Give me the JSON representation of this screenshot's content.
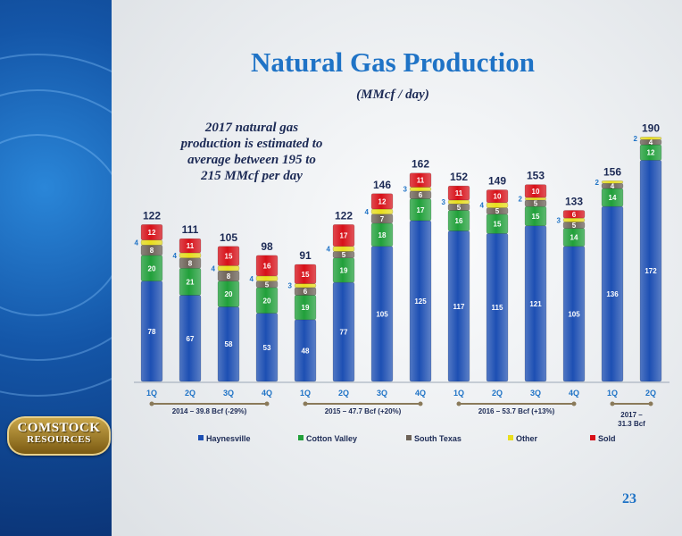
{
  "slide": {
    "title": "Natural Gas Production",
    "subtitle": "(MMcf / day)",
    "note": "2017 natural gas production is estimated to average between 195 to 215 MMcf  per day",
    "page_number": "23",
    "logo_line1": "COMSTOCK",
    "logo_line2": "RESOURCES"
  },
  "colors": {
    "Haynesville": "#1d4fb3",
    "Cotton Valley": "#21a03a",
    "South Texas": "#6d6257",
    "Other": "#e9de1d",
    "Sold": "#d81018"
  },
  "chart_data": {
    "type": "bar",
    "stacked": true,
    "categories": [
      "1Q",
      "2Q",
      "3Q",
      "4Q",
      "1Q",
      "2Q",
      "3Q",
      "4Q",
      "1Q",
      "2Q",
      "3Q",
      "4Q",
      "1Q",
      "2Q"
    ],
    "series": [
      {
        "name": "Haynesville",
        "values": [
          78,
          67,
          58,
          53,
          48,
          77,
          105,
          125,
          117,
          115,
          121,
          105,
          136,
          172
        ]
      },
      {
        "name": "Cotton Valley",
        "values": [
          20,
          21,
          20,
          20,
          19,
          19,
          18,
          17,
          16,
          15,
          15,
          14,
          14,
          12
        ]
      },
      {
        "name": "South Texas",
        "values": [
          8,
          8,
          8,
          5,
          6,
          5,
          7,
          6,
          5,
          5,
          5,
          5,
          4,
          4
        ]
      },
      {
        "name": "Other",
        "values": [
          4,
          4,
          4,
          4,
          3,
          4,
          4,
          3,
          3,
          4,
          2,
          3,
          2,
          2
        ]
      },
      {
        "name": "Sold",
        "values": [
          12,
          11,
          15,
          16,
          15,
          17,
          12,
          11,
          11,
          10,
          10,
          6,
          0,
          0
        ]
      }
    ],
    "totals": [
      122,
      111,
      105,
      98,
      91,
      122,
      146,
      162,
      152,
      149,
      153,
      133,
      156,
      190
    ],
    "ylim": [
      0,
      200
    ],
    "year_groups": [
      {
        "label": "2014 – 39.8 Bcf (-29%)",
        "from": 0,
        "to": 3
      },
      {
        "label": "2015 – 47.7 Bcf (+20%)",
        "from": 4,
        "to": 7
      },
      {
        "label": "2016 – 53.7 Bcf (+13%)",
        "from": 8,
        "to": 11
      },
      {
        "label": "2017 – 31.3 Bcf",
        "from": 12,
        "to": 13
      }
    ],
    "legend": [
      "Haynesville",
      "Cotton Valley",
      "South Texas",
      "Other",
      "Sold"
    ],
    "legend_position": "bottom",
    "grid": false
  }
}
